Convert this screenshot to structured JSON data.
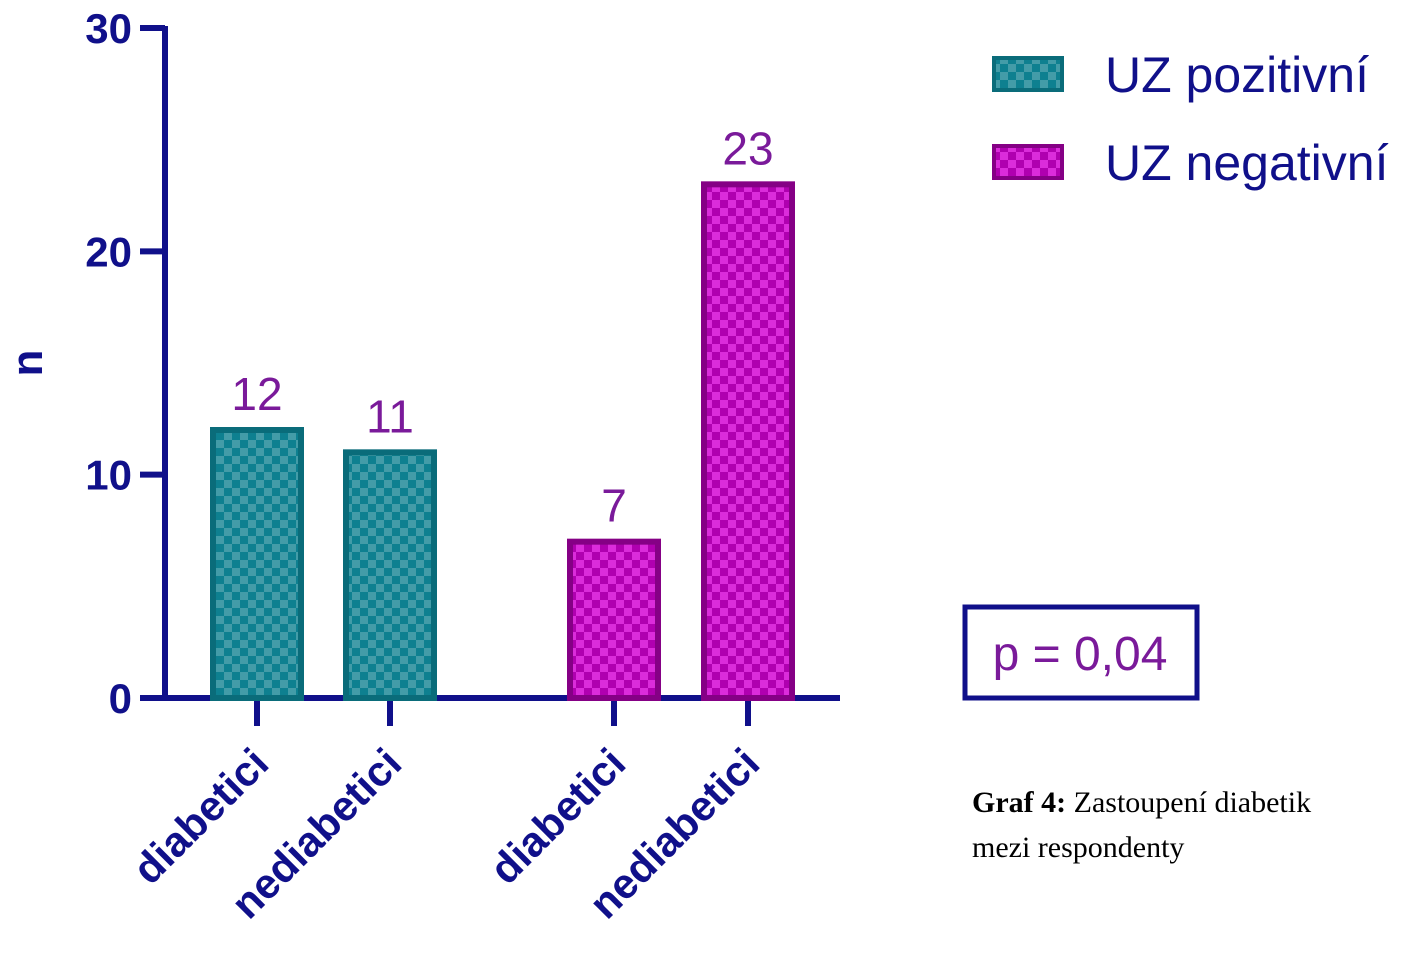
{
  "chart_data": {
    "type": "bar",
    "y_label": "n",
    "categories": [
      "diabetici",
      "nediabetici",
      "diabetici",
      "nediabetici"
    ],
    "series": [
      {
        "name": "UZ pozitivní",
        "color": "#0e8090",
        "values": [
          12,
          11,
          null,
          null
        ]
      },
      {
        "name": "UZ negativní",
        "color": "#b000b0",
        "values": [
          null,
          null,
          7,
          23
        ]
      }
    ],
    "ylim": [
      0,
      30
    ],
    "yticks": [
      0,
      10,
      20,
      30
    ],
    "annotation": "p = 0,04",
    "caption_label": "Graf 4:",
    "caption_lines": [
      "Zastoupení diabetik",
      "mezi respondenty"
    ]
  }
}
